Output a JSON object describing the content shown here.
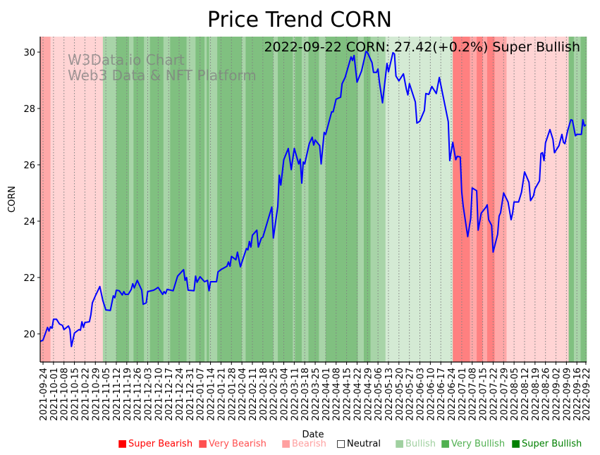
{
  "chart_data": {
    "type": "line",
    "title": "Price Trend CORN",
    "annotation": "2022-09-22 CORN: 27.42(+0.2%) Super Bullish",
    "watermark": [
      "W3Data.io Chart",
      "Web3 Data & NFT Platform"
    ],
    "xlabel": "Date",
    "ylabel": "CORN",
    "x_origin_date": "2021-09-24",
    "x_unit": "days since 2021-09-24",
    "xlim": [
      -1.9,
      363.5
    ],
    "ylim": [
      19.0,
      30.55
    ],
    "yticks": [
      20,
      22,
      24,
      26,
      28,
      30
    ],
    "xtick_labels": [
      "2021-09-24",
      "2021-10-01",
      "2021-10-08",
      "2021-10-15",
      "2021-10-22",
      "2021-10-29",
      "2021-11-05",
      "2021-11-12",
      "2021-11-19",
      "2021-11-26",
      "2021-12-03",
      "2021-12-10",
      "2021-12-17",
      "2021-12-24",
      "2021-12-31",
      "2022-01-07",
      "2022-01-14",
      "2022-01-21",
      "2022-01-28",
      "2022-02-04",
      "2022-02-11",
      "2022-02-18",
      "2022-02-25",
      "2022-03-04",
      "2022-03-11",
      "2022-03-18",
      "2022-03-25",
      "2022-04-01",
      "2022-04-08",
      "2022-04-15",
      "2022-04-22",
      "2022-04-29",
      "2022-05-06",
      "2022-05-13",
      "2022-05-20",
      "2022-05-27",
      "2022-06-03",
      "2022-06-10",
      "2022-06-17",
      "2022-06-24",
      "2022-07-01",
      "2022-07-08",
      "2022-07-15",
      "2022-07-22",
      "2022-07-29",
      "2022-08-05",
      "2022-08-12",
      "2022-08-19",
      "2022-08-26",
      "2022-09-02",
      "2022-09-09",
      "2022-09-16",
      "2022-09-22"
    ],
    "xtick_days": [
      0,
      7,
      14,
      21,
      28,
      35,
      42,
      49,
      56,
      63,
      70,
      77,
      84,
      91,
      98,
      105,
      112,
      119,
      126,
      133,
      140,
      147,
      154,
      161,
      168,
      175,
      182,
      189,
      196,
      203,
      210,
      217,
      224,
      231,
      238,
      245,
      252,
      259,
      266,
      273,
      280,
      287,
      294,
      301,
      308,
      315,
      322,
      329,
      336,
      343,
      350,
      357,
      363
    ],
    "grid": "vertical dotted at x ticks",
    "line_color": "#0000ff",
    "series": [
      {
        "name": "CORN",
        "points": [
          [
            -2,
            19.73
          ],
          [
            0,
            19.78
          ],
          [
            3,
            20.23
          ],
          [
            4,
            20.1
          ],
          [
            5,
            20.25
          ],
          [
            6,
            20.2
          ],
          [
            7,
            20.52
          ],
          [
            9,
            20.52
          ],
          [
            11,
            20.35
          ],
          [
            13,
            20.3
          ],
          [
            14,
            20.15
          ],
          [
            17,
            20.28
          ],
          [
            18,
            20.15
          ],
          [
            19,
            19.55
          ],
          [
            21,
            20.03
          ],
          [
            24,
            20.15
          ],
          [
            25,
            20.13
          ],
          [
            26,
            20.43
          ],
          [
            27,
            20.23
          ],
          [
            28,
            20.4
          ],
          [
            31,
            20.43
          ],
          [
            32,
            20.68
          ],
          [
            33,
            21.1
          ],
          [
            35,
            21.35
          ],
          [
            38,
            21.68
          ],
          [
            40,
            21.18
          ],
          [
            42,
            20.85
          ],
          [
            45,
            20.83
          ],
          [
            47,
            21.35
          ],
          [
            48,
            21.28
          ],
          [
            49,
            21.55
          ],
          [
            51,
            21.53
          ],
          [
            53,
            21.38
          ],
          [
            54,
            21.5
          ],
          [
            55,
            21.4
          ],
          [
            57,
            21.4
          ],
          [
            59,
            21.58
          ],
          [
            60,
            21.78
          ],
          [
            61,
            21.63
          ],
          [
            63,
            21.9
          ],
          [
            66,
            21.55
          ],
          [
            67,
            21.05
          ],
          [
            69,
            21.1
          ],
          [
            70,
            21.5
          ],
          [
            74,
            21.55
          ],
          [
            75,
            21.58
          ],
          [
            77,
            21.65
          ],
          [
            80,
            21.4
          ],
          [
            81,
            21.5
          ],
          [
            82,
            21.43
          ],
          [
            83,
            21.58
          ],
          [
            87,
            21.53
          ],
          [
            90,
            22.05
          ],
          [
            94,
            22.28
          ],
          [
            95,
            21.9
          ],
          [
            96,
            22.0
          ],
          [
            97,
            21.55
          ],
          [
            101,
            21.53
          ],
          [
            102,
            22.05
          ],
          [
            103,
            21.83
          ],
          [
            105,
            22.03
          ],
          [
            108,
            21.85
          ],
          [
            110,
            21.9
          ],
          [
            111,
            21.53
          ],
          [
            112,
            21.85
          ],
          [
            116,
            21.85
          ],
          [
            117,
            22.2
          ],
          [
            119,
            22.28
          ],
          [
            123,
            22.4
          ],
          [
            124,
            22.55
          ],
          [
            125,
            22.4
          ],
          [
            126,
            22.75
          ],
          [
            129,
            22.63
          ],
          [
            130,
            22.9
          ],
          [
            132,
            22.38
          ],
          [
            136,
            23.03
          ],
          [
            137,
            22.98
          ],
          [
            138,
            23.28
          ],
          [
            139,
            23.08
          ],
          [
            140,
            23.5
          ],
          [
            143,
            23.68
          ],
          [
            144,
            23.08
          ],
          [
            146,
            23.4
          ],
          [
            147,
            23.43
          ],
          [
            153,
            24.5
          ],
          [
            154,
            23.4
          ],
          [
            157,
            24.53
          ],
          [
            158,
            25.63
          ],
          [
            159,
            25.28
          ],
          [
            161,
            26.18
          ],
          [
            164,
            26.58
          ],
          [
            166,
            25.83
          ],
          [
            168,
            26.58
          ],
          [
            171,
            26.03
          ],
          [
            172,
            26.2
          ],
          [
            173,
            25.35
          ],
          [
            174,
            26.1
          ],
          [
            175,
            26.03
          ],
          [
            178,
            26.75
          ],
          [
            180,
            26.98
          ],
          [
            181,
            26.7
          ],
          [
            182,
            26.88
          ],
          [
            185,
            26.68
          ],
          [
            186,
            26.03
          ],
          [
            188,
            27.15
          ],
          [
            189,
            27.08
          ],
          [
            193,
            27.88
          ],
          [
            194,
            27.88
          ],
          [
            196,
            28.33
          ],
          [
            199,
            28.4
          ],
          [
            200,
            28.88
          ],
          [
            202,
            29.1
          ],
          [
            206,
            29.83
          ],
          [
            207,
            29.7
          ],
          [
            208,
            29.88
          ],
          [
            210,
            28.93
          ],
          [
            213,
            29.33
          ],
          [
            216,
            30.03
          ],
          [
            217,
            29.98
          ],
          [
            220,
            29.63
          ],
          [
            221,
            29.28
          ],
          [
            223,
            29.28
          ],
          [
            224,
            29.4
          ],
          [
            225,
            28.93
          ],
          [
            227,
            28.2
          ],
          [
            230,
            29.6
          ],
          [
            231,
            29.3
          ],
          [
            234,
            29.98
          ],
          [
            235,
            29.93
          ],
          [
            236,
            29.15
          ],
          [
            238,
            28.98
          ],
          [
            241,
            29.23
          ],
          [
            243,
            28.68
          ],
          [
            244,
            28.48
          ],
          [
            245,
            28.88
          ],
          [
            249,
            28.23
          ],
          [
            250,
            27.48
          ],
          [
            252,
            27.55
          ],
          [
            255,
            27.93
          ],
          [
            256,
            28.53
          ],
          [
            258,
            28.5
          ],
          [
            260,
            28.78
          ],
          [
            263,
            28.53
          ],
          [
            265,
            29.1
          ],
          [
            271,
            27.53
          ],
          [
            272,
            26.15
          ],
          [
            274,
            26.8
          ],
          [
            276,
            26.18
          ],
          [
            277,
            26.3
          ],
          [
            279,
            26.28
          ],
          [
            280,
            25.03
          ],
          [
            281,
            24.53
          ],
          [
            284,
            23.45
          ],
          [
            286,
            24.1
          ],
          [
            287,
            25.18
          ],
          [
            290,
            25.08
          ],
          [
            291,
            23.68
          ],
          [
            293,
            24.28
          ],
          [
            296,
            24.48
          ],
          [
            297,
            24.58
          ],
          [
            298,
            24.05
          ],
          [
            300,
            23.85
          ],
          [
            301,
            22.9
          ],
          [
            304,
            23.53
          ],
          [
            305,
            24.18
          ],
          [
            306,
            24.3
          ],
          [
            308,
            25.0
          ],
          [
            311,
            24.68
          ],
          [
            313,
            24.05
          ],
          [
            314,
            24.28
          ],
          [
            315,
            24.68
          ],
          [
            318,
            24.68
          ],
          [
            320,
            25.03
          ],
          [
            322,
            25.75
          ],
          [
            325,
            25.38
          ],
          [
            326,
            24.73
          ],
          [
            328,
            24.9
          ],
          [
            329,
            25.15
          ],
          [
            332,
            25.43
          ],
          [
            333,
            26.4
          ],
          [
            334,
            26.43
          ],
          [
            335,
            26.15
          ],
          [
            336,
            26.78
          ],
          [
            339,
            27.25
          ],
          [
            341,
            26.9
          ],
          [
            342,
            26.43
          ],
          [
            345,
            26.68
          ],
          [
            347,
            27.08
          ],
          [
            348,
            26.8
          ],
          [
            349,
            26.75
          ],
          [
            351,
            27.25
          ],
          [
            353,
            27.6
          ],
          [
            354,
            27.58
          ],
          [
            356,
            27.03
          ],
          [
            357,
            27.08
          ],
          [
            360,
            27.08
          ],
          [
            361,
            27.6
          ],
          [
            362,
            27.38
          ],
          [
            363,
            27.42
          ]
        ]
      }
    ],
    "sentiment_bands": [
      [
        -2,
        5,
        "very_bearish"
      ],
      [
        5,
        40,
        "bearish"
      ],
      [
        40,
        49,
        "bullish"
      ],
      [
        49,
        57.5,
        "very_bullish"
      ],
      [
        57.5,
        60.5,
        "bullish"
      ],
      [
        60.5,
        67.5,
        "very_bullish"
      ],
      [
        67.5,
        71.5,
        "bullish"
      ],
      [
        71.5,
        80.5,
        "very_bullish"
      ],
      [
        80.5,
        85,
        "bullish"
      ],
      [
        85,
        96,
        "very_bullish"
      ],
      [
        96,
        102,
        "bullish"
      ],
      [
        102,
        108,
        "very_bullish"
      ],
      [
        108,
        109.5,
        "bullish"
      ],
      [
        109.5,
        111,
        "very_bullish"
      ],
      [
        111,
        116.5,
        "bullish"
      ],
      [
        116.5,
        133,
        "very_bullish"
      ],
      [
        133,
        135.5,
        "bullish"
      ],
      [
        135.5,
        154,
        "very_bullish"
      ],
      [
        154,
        157,
        "bullish"
      ],
      [
        157,
        167,
        "very_bullish"
      ],
      [
        167,
        168.5,
        "bullish"
      ],
      [
        168.5,
        173,
        "very_bullish"
      ],
      [
        173,
        177.5,
        "bullish"
      ],
      [
        177.5,
        184.5,
        "very_bullish"
      ],
      [
        184.5,
        189,
        "bullish"
      ],
      [
        189,
        210.5,
        "very_bullish"
      ],
      [
        210.5,
        214.5,
        "bullish"
      ],
      [
        214.5,
        219,
        "very_bullish"
      ],
      [
        219,
        229,
        "bullish"
      ],
      [
        229,
        274,
        "bullish_pale"
      ],
      [
        274,
        285.5,
        "super_bearish"
      ],
      [
        285.5,
        290,
        "very_bearish"
      ],
      [
        290,
        294,
        "super_bearish"
      ],
      [
        294,
        297,
        "very_bearish"
      ],
      [
        297,
        302,
        "super_bearish"
      ],
      [
        302,
        310,
        "very_bearish"
      ],
      [
        310,
        351.5,
        "bearish"
      ],
      [
        351.5,
        355,
        "very_bullish"
      ],
      [
        355,
        359.5,
        "bullish"
      ],
      [
        359.5,
        363.5,
        "very_bullish"
      ]
    ],
    "band_colors": {
      "super_bearish": "#ff8080",
      "very_bearish": "#ffa8a8",
      "bearish": "#ffd4d4",
      "bullish_pale": "#d4ead4",
      "bullish": "#a8d4a8",
      "very_bullish": "#80c080"
    },
    "legend": {
      "placement": "bottom",
      "items": [
        {
          "marker": "■",
          "label": "Super Bearish",
          "color": "#ff0000"
        },
        {
          "marker": "■",
          "label": "Very Bearish",
          "color": "#ff5050"
        },
        {
          "marker": "■",
          "label": "Bearish",
          "color": "#ffa0a0"
        },
        {
          "marker": "□",
          "label": "Neutral",
          "color": "#000000"
        },
        {
          "marker": "■",
          "label": "Bullish",
          "color": "#a0d0a0"
        },
        {
          "marker": "■",
          "label": "Very Bullish",
          "color": "#50b050"
        },
        {
          "marker": "■",
          "label": "Super Bullish",
          "color": "#008000"
        }
      ]
    }
  }
}
